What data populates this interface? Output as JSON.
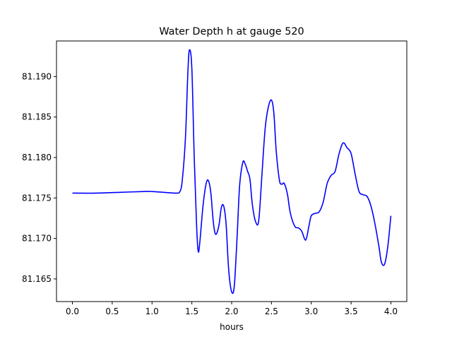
{
  "chart_data": {
    "type": "line",
    "title": "Water Depth h at gauge 520",
    "xlabel": "hours",
    "ylabel": "",
    "xlim": [
      -0.2,
      4.2
    ],
    "ylim": [
      81.1622,
      81.1944
    ],
    "grid": false,
    "xticks": [
      "0.0",
      "0.5",
      "1.0",
      "1.5",
      "2.0",
      "2.5",
      "3.0",
      "3.5",
      "4.0"
    ],
    "yticks": [
      "81.165",
      "81.170",
      "81.175",
      "81.180",
      "81.185",
      "81.190"
    ],
    "series": [
      {
        "color": "#0000ff",
        "x": [
          0.0,
          0.3,
          0.6,
          0.9,
          1.0,
          1.15,
          1.3,
          1.35,
          1.38,
          1.42,
          1.45,
          1.47,
          1.5,
          1.53,
          1.56,
          1.58,
          1.6,
          1.64,
          1.68,
          1.71,
          1.74,
          1.77,
          1.8,
          1.84,
          1.87,
          1.9,
          1.93,
          1.96,
          1.99,
          2.02,
          2.04,
          2.07,
          2.1,
          2.14,
          2.17,
          2.2,
          2.23,
          2.26,
          2.3,
          2.34,
          2.38,
          2.42,
          2.46,
          2.5,
          2.53,
          2.56,
          2.6,
          2.63,
          2.66,
          2.7,
          2.73,
          2.76,
          2.8,
          2.84,
          2.88,
          2.93,
          2.97,
          3.0,
          3.05,
          3.1,
          3.15,
          3.2,
          3.25,
          3.3,
          3.35,
          3.4,
          3.45,
          3.5,
          3.55,
          3.6,
          3.65,
          3.7,
          3.75,
          3.8,
          3.85,
          3.88,
          3.92,
          3.96,
          4.0
        ],
        "y": [
          81.1756,
          81.1756,
          81.1757,
          81.1758,
          81.1758,
          81.1757,
          81.1756,
          81.1758,
          81.1772,
          81.1825,
          81.1905,
          81.1933,
          81.191,
          81.18,
          81.1715,
          81.1684,
          81.1695,
          81.174,
          81.1768,
          81.1771,
          81.1755,
          81.172,
          81.1705,
          81.1716,
          81.1738,
          81.174,
          81.1718,
          81.1665,
          81.1638,
          81.1633,
          81.165,
          81.1705,
          81.1765,
          81.1794,
          81.1792,
          81.1783,
          81.1773,
          81.1742,
          81.1721,
          81.1722,
          81.1778,
          81.1835,
          81.1862,
          81.1871,
          81.1855,
          81.1808,
          81.1772,
          81.1767,
          81.1768,
          81.1755,
          81.1735,
          81.1723,
          81.1714,
          81.1713,
          81.1709,
          81.1698,
          81.1715,
          81.1728,
          81.1731,
          81.1733,
          81.1745,
          81.1768,
          81.1778,
          81.1783,
          81.1805,
          81.1818,
          81.1812,
          81.1805,
          81.178,
          81.1758,
          81.1754,
          81.1752,
          81.174,
          81.1718,
          81.169,
          81.1671,
          81.1668,
          81.1689,
          81.1728
        ]
      }
    ]
  }
}
